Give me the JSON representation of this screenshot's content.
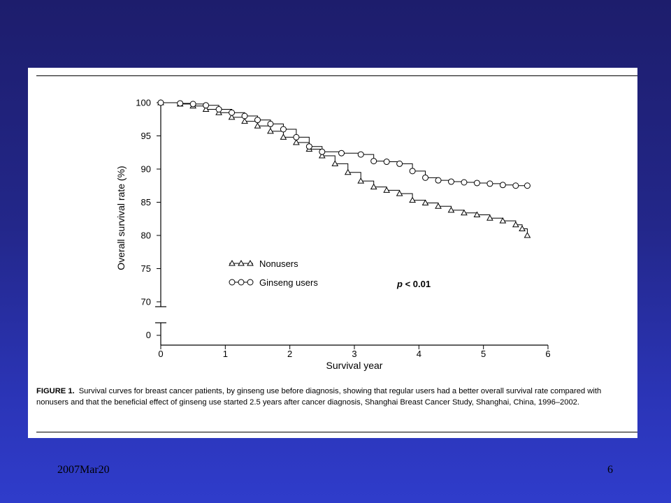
{
  "slide": {
    "footer_date": "2007Mar20",
    "page_number": "6"
  },
  "caption": {
    "label": "FIGURE 1.",
    "text": "Survival curves for breast cancer patients, by ginseng use before diagnosis, showing that regular users had a better overall survival rate compared with nonusers and that the beneficial effect of ginseng use started 2.5 years after cancer diagnosis, Shanghai Breast Cancer Study, Shanghai, China, 1996–2002."
  },
  "chart_data": {
    "type": "line",
    "title": "",
    "xlabel": "Survival year",
    "ylabel": "Overall survival rate (%)",
    "xlim": [
      0,
      6
    ],
    "ylim": [
      70,
      100
    ],
    "broken_y_axis": true,
    "y_extra_tick": 0,
    "x_ticks": [
      0,
      1,
      2,
      3,
      4,
      5,
      6
    ],
    "y_ticks": [
      100,
      95,
      90,
      85,
      80,
      75,
      70
    ],
    "grid": false,
    "legend_position": "lower-left",
    "annotation": "p < 0.01",
    "series": [
      {
        "name": "Nonusers",
        "marker": "triangle",
        "x": [
          0,
          0.3,
          0.5,
          0.7,
          0.9,
          1.1,
          1.3,
          1.5,
          1.7,
          1.9,
          2.1,
          2.3,
          2.5,
          2.7,
          2.9,
          3.1,
          3.3,
          3.5,
          3.7,
          3.9,
          4.1,
          4.3,
          4.5,
          4.7,
          4.9,
          5.1,
          5.3,
          5.5,
          5.6,
          5.68
        ],
        "y": [
          100,
          99.8,
          99.5,
          99,
          98.5,
          97.8,
          97.2,
          96.5,
          95.7,
          94.8,
          94,
          93,
          92,
          90.8,
          89.5,
          88.2,
          87.3,
          86.8,
          86.3,
          85.3,
          84.9,
          84.4,
          83.8,
          83.4,
          83.1,
          82.6,
          82.2,
          81.6,
          81,
          80
        ]
      },
      {
        "name": "Ginseng users",
        "marker": "circle",
        "x": [
          0,
          0.3,
          0.5,
          0.7,
          0.9,
          1.1,
          1.3,
          1.5,
          1.7,
          1.9,
          2.1,
          2.3,
          2.5,
          2.8,
          3.1,
          3.3,
          3.5,
          3.7,
          3.9,
          4.1,
          4.3,
          4.5,
          4.7,
          4.9,
          5.1,
          5.3,
          5.5,
          5.68
        ],
        "y": [
          100,
          99.9,
          99.8,
          99.6,
          99,
          98.5,
          98,
          97.4,
          96.8,
          96,
          94.8,
          93.4,
          92.6,
          92.4,
          92.2,
          91.2,
          91.1,
          90.8,
          89.7,
          88.7,
          88.3,
          88.1,
          88,
          87.9,
          87.8,
          87.6,
          87.5,
          87.5
        ]
      }
    ]
  }
}
